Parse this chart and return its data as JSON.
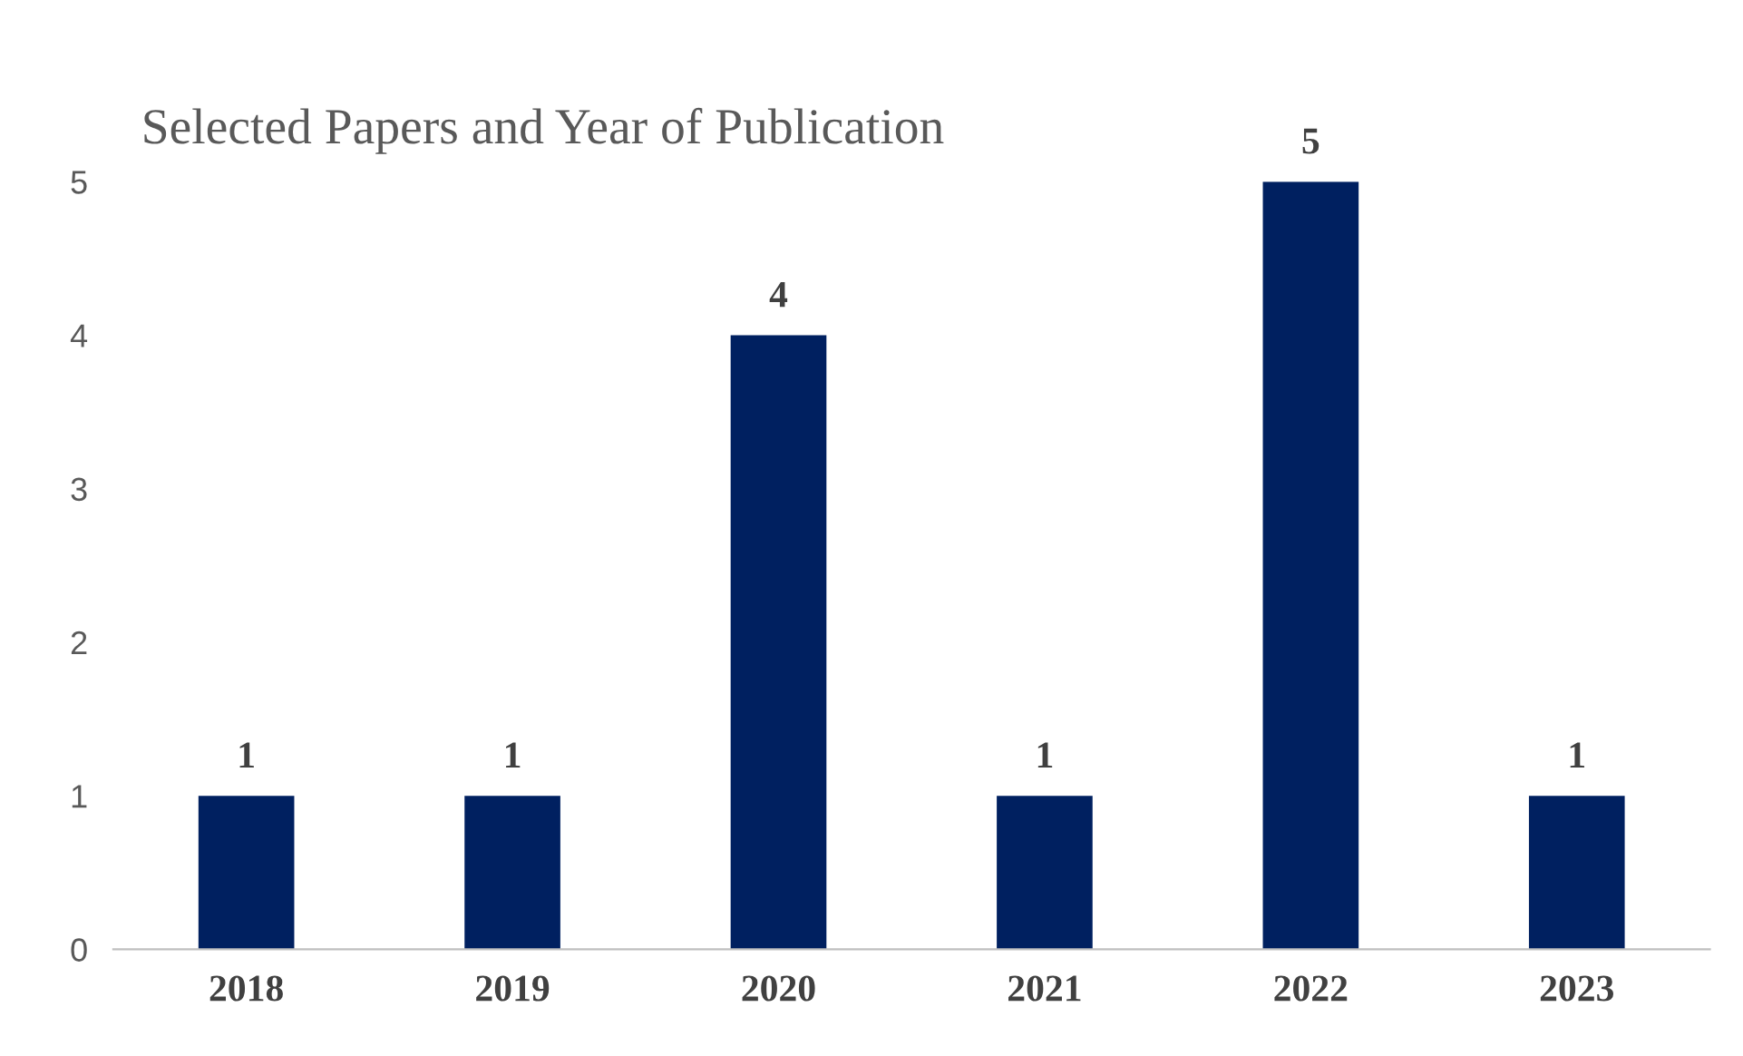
{
  "chart_data": {
    "type": "bar",
    "title": "Selected Papers and Year of Publication",
    "categories": [
      "2018",
      "2019",
      "2020",
      "2021",
      "2022",
      "2023"
    ],
    "values": [
      1,
      1,
      4,
      1,
      5,
      1
    ],
    "color": "#002060",
    "ylim": [
      0,
      5
    ],
    "yticks": [
      0,
      1,
      2,
      3,
      4,
      5
    ],
    "grid": false,
    "data_labels": true
  }
}
